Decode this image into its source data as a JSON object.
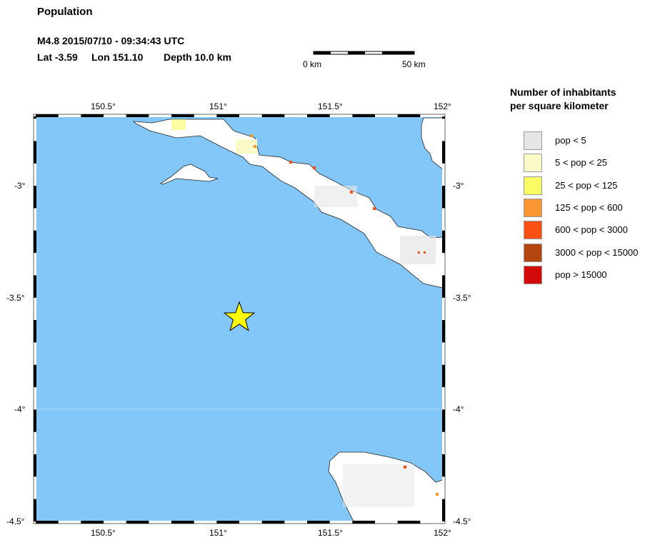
{
  "title": "Population",
  "event": {
    "line1": "M4.8  2015/07/10 - 09:34:43 UTC",
    "lat_label": "Lat -3.59",
    "lon_label": "Lon 151.10",
    "depth_label": "Depth  10.0 km"
  },
  "scalebar": {
    "start": "0 km",
    "end": "50 km"
  },
  "map": {
    "lon_ticks": [
      "150.5°",
      "151°",
      "151.5°",
      "152°"
    ],
    "lat_ticks": [
      "-3°",
      "-3.5°",
      "-4°",
      "-4.5°"
    ],
    "lon_range": [
      150.2,
      152.0
    ],
    "lat_range": [
      -4.5,
      -2.69
    ],
    "epicenter": {
      "lat": -3.59,
      "lon": 151.1,
      "icon": "star-icon",
      "color": "#ffff00"
    },
    "ocean_color": "#82c7f8",
    "land_color": "#ffffff"
  },
  "legend": {
    "title_line1": "Number of inhabitants",
    "title_line2": "per square kilometer",
    "items": [
      {
        "label": "pop < 5",
        "color": "#e6e6e6"
      },
      {
        "label": "5 < pop < 25",
        "color": "#fafac8"
      },
      {
        "label": "25 < pop < 125",
        "color": "#fafa64"
      },
      {
        "label": "125 < pop < 600",
        "color": "#fa9632"
      },
      {
        "label": "600 < pop < 3000",
        "color": "#fa5014"
      },
      {
        "label": "3000 < pop < 15000",
        "color": "#b4460f"
      },
      {
        "label": "pop > 15000",
        "color": "#d20a0a"
      }
    ]
  }
}
